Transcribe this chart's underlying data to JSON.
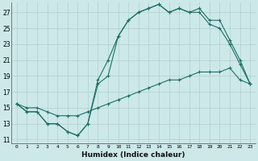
{
  "title": "",
  "xlabel": "Humidex (Indice chaleur)",
  "ylabel": "",
  "bg_color": "#cde8e8",
  "line_color": "#1a7068",
  "grid_color": "#b0d0d0",
  "xlim": [
    -0.5,
    23.5
  ],
  "ylim": [
    10.5,
    28.2
  ],
  "xticks": [
    0,
    1,
    2,
    3,
    4,
    5,
    6,
    7,
    8,
    9,
    10,
    11,
    12,
    13,
    14,
    15,
    16,
    17,
    18,
    19,
    20,
    21,
    22,
    23
  ],
  "yticks": [
    11,
    13,
    15,
    17,
    19,
    21,
    23,
    25,
    27
  ],
  "line1_x": [
    0,
    1,
    2,
    3,
    4,
    5,
    6,
    7,
    8,
    9,
    10,
    11,
    12,
    13,
    14,
    15,
    16,
    17,
    18,
    19,
    20,
    21,
    22,
    23
  ],
  "line1_y": [
    15.5,
    14.5,
    14.5,
    13,
    13,
    12,
    11.5,
    13,
    18.5,
    21,
    24,
    26,
    27,
    27.5,
    28,
    27,
    27.5,
    27,
    27.5,
    26,
    26,
    23.5,
    21,
    18
  ],
  "line2_x": [
    0,
    1,
    2,
    3,
    4,
    5,
    6,
    7,
    8,
    9,
    10,
    11,
    12,
    13,
    14,
    15,
    16,
    17,
    18,
    19,
    20,
    21,
    22,
    23
  ],
  "line2_y": [
    15.5,
    14.5,
    14.5,
    13,
    13,
    12,
    11.5,
    13,
    18,
    19,
    24,
    26,
    27,
    27.5,
    28,
    27,
    27.5,
    27,
    27,
    25.5,
    25,
    23,
    20.5,
    18
  ],
  "line3_x": [
    0,
    1,
    2,
    3,
    4,
    5,
    6,
    7,
    8,
    9,
    10,
    11,
    12,
    13,
    14,
    15,
    16,
    17,
    18,
    19,
    20,
    21,
    22,
    23
  ],
  "line3_y": [
    15.5,
    15,
    15,
    14.5,
    14,
    14,
    14,
    14.5,
    15,
    15.5,
    16,
    16.5,
    17,
    17.5,
    18,
    18.5,
    18.5,
    19,
    19.5,
    19.5,
    19.5,
    20,
    18.5,
    18
  ]
}
